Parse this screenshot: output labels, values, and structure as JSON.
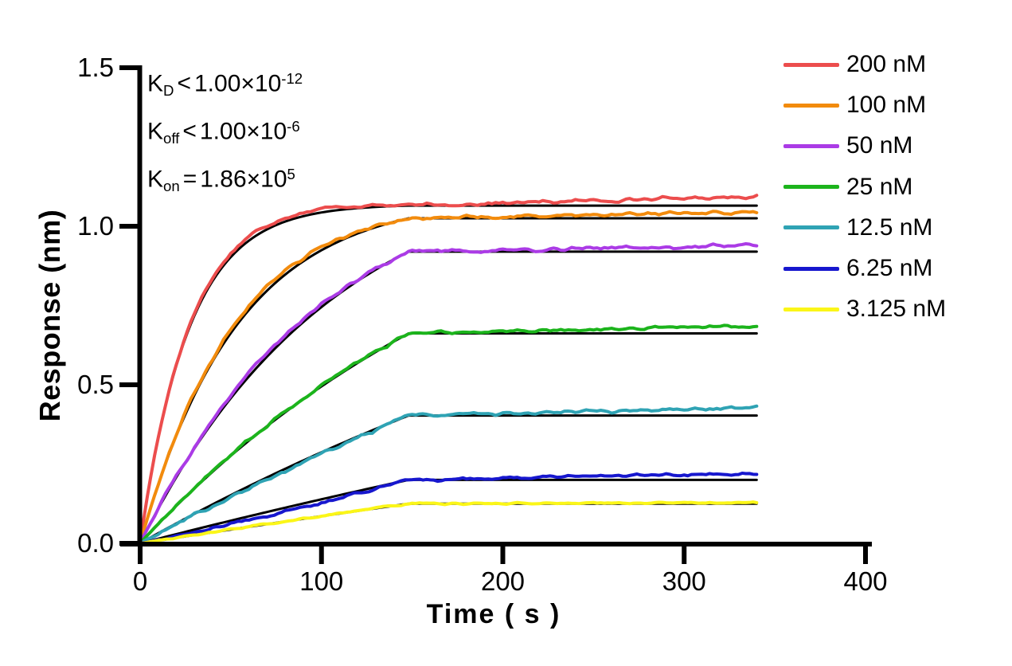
{
  "figure": {
    "background": "#ffffff",
    "annotation": {
      "lines": [
        {
          "base": "K",
          "sub": "D",
          "rel": "<",
          "mantissa": "1.00×10",
          "exp": "-12"
        },
        {
          "base": "K",
          "sub": "off",
          "rel": "<",
          "mantissa": "1.00×10",
          "exp": "-6"
        },
        {
          "base": "K",
          "sub": "on",
          "rel": "=",
          "mantissa": "1.86×10",
          "exp": "5"
        }
      ]
    }
  },
  "chart_data": {
    "type": "line",
    "title": "",
    "xlabel": "Time ( s )",
    "ylabel": "Response (nm)",
    "xlim": [
      0,
      400
    ],
    "ylim": [
      0,
      1.5
    ],
    "x_ticks": [
      0,
      100,
      200,
      300,
      400
    ],
    "x_tick_labels": [
      "0",
      "100",
      "200",
      "300",
      "400"
    ],
    "y_ticks": [
      0,
      0.5,
      1.0,
      1.5
    ],
    "y_tick_labels": [
      "0.0",
      "0.5",
      "1.0",
      "1.5"
    ],
    "grid": false,
    "legend_position": "right",
    "axis_color": "#000000",
    "fit_color": "#000000",
    "association_end_s": 148,
    "run_end_s": 340,
    "series": [
      {
        "name": "200 nM",
        "conc_nM": 200,
        "color": "#EC4D4D",
        "kobs_per_s": 0.0372,
        "plateau_nm": 1.065,
        "end_nm": 1.095,
        "bulge_nm": 0.013,
        "noise_nm": 0.008
      },
      {
        "name": "100 nM",
        "conc_nM": 100,
        "color": "#F28B0D",
        "kobs_per_s": 0.0186,
        "plateau_nm": 1.025,
        "end_nm": 1.045,
        "bulge_nm": 0.011,
        "noise_nm": 0.008
      },
      {
        "name": "50 nM",
        "conc_nM": 50,
        "color": "#AB3BE6",
        "kobs_per_s": 0.0093,
        "plateau_nm": 0.92,
        "end_nm": 0.94,
        "bulge_nm": 0.01,
        "noise_nm": 0.009
      },
      {
        "name": "25 nM",
        "conc_nM": 25,
        "color": "#1CB41C",
        "kobs_per_s": 0.00465,
        "plateau_nm": 0.662,
        "end_nm": 0.685,
        "bulge_nm": 0.002,
        "noise_nm": 0.008
      },
      {
        "name": "12.5 nM",
        "conc_nM": 12.5,
        "color": "#2FA3B4",
        "kobs_per_s": 0.00233,
        "plateau_nm": 0.403,
        "end_nm": 0.428,
        "bulge_nm": -0.008,
        "noise_nm": 0.008
      },
      {
        "name": "6.25 nM",
        "conc_nM": 6.25,
        "color": "#1717CE",
        "kobs_per_s": 0.00116,
        "plateau_nm": 0.2,
        "end_nm": 0.222,
        "bulge_nm": -0.012,
        "noise_nm": 0.007
      },
      {
        "name": "3.125 nM",
        "conc_nM": 3.125,
        "color": "#FBF618",
        "kobs_per_s": 0.00058,
        "plateau_nm": 0.125,
        "end_nm": 0.128,
        "bulge_nm": 0.0,
        "noise_nm": 0.004
      }
    ]
  }
}
